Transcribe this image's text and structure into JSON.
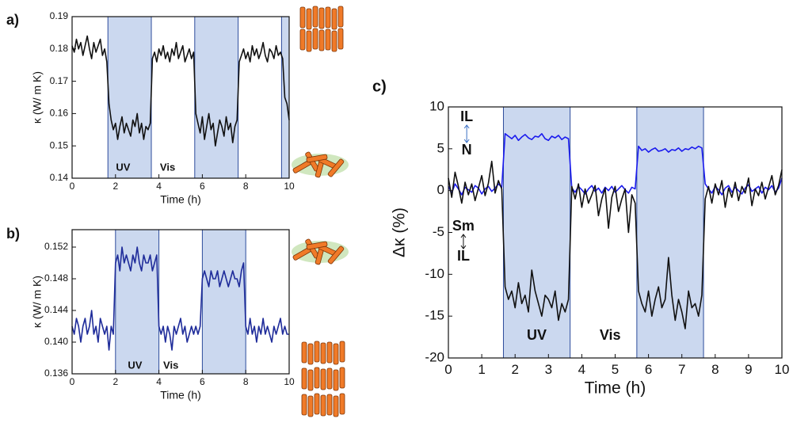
{
  "chart_data": [
    {
      "type": "line",
      "panel": "a)",
      "xlabel": "Time (h)",
      "ylabel": "κ (W/ m K)",
      "x": [
        0,
        0.1,
        0.2,
        0.3,
        0.4,
        0.5,
        0.6,
        0.7,
        0.8,
        0.9,
        1,
        1.1,
        1.2,
        1.3,
        1.4,
        1.5,
        1.6,
        1.7,
        1.8,
        1.9,
        2,
        2.1,
        2.2,
        2.3,
        2.4,
        2.5,
        2.6,
        2.7,
        2.8,
        2.9,
        3,
        3.1,
        3.2,
        3.3,
        3.4,
        3.5,
        3.6,
        3.7,
        3.8,
        3.9,
        4,
        4.1,
        4.2,
        4.3,
        4.4,
        4.5,
        4.6,
        4.7,
        4.8,
        4.9,
        5,
        5.1,
        5.2,
        5.3,
        5.4,
        5.5,
        5.6,
        5.7,
        5.8,
        5.9,
        6,
        6.1,
        6.2,
        6.3,
        6.4,
        6.5,
        6.6,
        6.7,
        6.8,
        6.9,
        7,
        7.1,
        7.2,
        7.3,
        7.4,
        7.5,
        7.6,
        7.7,
        7.8,
        7.9,
        8,
        8.1,
        8.2,
        8.3,
        8.4,
        8.5,
        8.6,
        8.7,
        8.8,
        8.9,
        9,
        9.1,
        9.2,
        9.3,
        9.4,
        9.5,
        9.6,
        9.7,
        9.8,
        9.9,
        10
      ],
      "series": [
        {
          "color": "#111111",
          "values": [
            0.181,
            0.179,
            0.183,
            0.18,
            0.182,
            0.178,
            0.181,
            0.184,
            0.18,
            0.177,
            0.182,
            0.179,
            0.181,
            0.183,
            0.178,
            0.18,
            0.176,
            0.163,
            0.158,
            0.155,
            0.157,
            0.152,
            0.156,
            0.159,
            0.154,
            0.157,
            0.155,
            0.153,
            0.158,
            0.156,
            0.16,
            0.154,
            0.157,
            0.152,
            0.156,
            0.155,
            0.157,
            0.177,
            0.179,
            0.176,
            0.18,
            0.178,
            0.181,
            0.177,
            0.179,
            0.176,
            0.18,
            0.178,
            0.182,
            0.177,
            0.179,
            0.181,
            0.176,
            0.178,
            0.18,
            0.177,
            0.179,
            0.16,
            0.157,
            0.154,
            0.159,
            0.152,
            0.156,
            0.16,
            0.155,
            0.157,
            0.15,
            0.154,
            0.158,
            0.156,
            0.153,
            0.159,
            0.155,
            0.157,
            0.151,
            0.156,
            0.158,
            0.176,
            0.178,
            0.18,
            0.177,
            0.179,
            0.176,
            0.181,
            0.178,
            0.18,
            0.177,
            0.179,
            0.182,
            0.178,
            0.176,
            0.18,
            0.179,
            0.177,
            0.181,
            0.178,
            0.179,
            0.177,
            0.165,
            0.163,
            0.158
          ]
        }
      ],
      "shaded_regions": [
        [
          1.65,
          3.65
        ],
        [
          5.65,
          7.65
        ],
        [
          9.65,
          10
        ]
      ],
      "xlim": [
        0,
        10
      ],
      "xticks": [
        0,
        2,
        4,
        6,
        8,
        10
      ],
      "ylim": [
        0.14,
        0.19
      ],
      "yticks": [
        0.14,
        0.15,
        0.16,
        0.17,
        0.18,
        0.19
      ],
      "annotations": [
        {
          "text": "UV",
          "color": "#111111"
        },
        {
          "text": "Vis",
          "color": "#111111"
        }
      ]
    },
    {
      "type": "line",
      "panel": "b)",
      "xlabel": "Time (h)",
      "ylabel": "κ (W/ m K)",
      "x": [
        0,
        0.1,
        0.2,
        0.3,
        0.4,
        0.5,
        0.6,
        0.7,
        0.8,
        0.9,
        1,
        1.1,
        1.2,
        1.3,
        1.4,
        1.5,
        1.6,
        1.7,
        1.8,
        1.9,
        2,
        2.1,
        2.2,
        2.3,
        2.4,
        2.5,
        2.6,
        2.7,
        2.8,
        2.9,
        3,
        3.1,
        3.2,
        3.3,
        3.4,
        3.5,
        3.6,
        3.7,
        3.8,
        3.9,
        4,
        4.1,
        4.2,
        4.3,
        4.4,
        4.5,
        4.6,
        4.7,
        4.8,
        4.9,
        5,
        5.1,
        5.2,
        5.3,
        5.4,
        5.5,
        5.6,
        5.7,
        5.8,
        5.9,
        6,
        6.1,
        6.2,
        6.3,
        6.4,
        6.5,
        6.6,
        6.7,
        6.8,
        6.9,
        7,
        7.1,
        7.2,
        7.3,
        7.4,
        7.5,
        7.6,
        7.7,
        7.8,
        7.9,
        8,
        8.1,
        8.2,
        8.3,
        8.4,
        8.5,
        8.6,
        8.7,
        8.8,
        8.9,
        9,
        9.1,
        9.2,
        9.3,
        9.4,
        9.5,
        9.6,
        9.7,
        9.8,
        9.9,
        10
      ],
      "series": [
        {
          "color": "#1f2c9a",
          "values": [
            0.142,
            0.141,
            0.143,
            0.142,
            0.14,
            0.142,
            0.143,
            0.141,
            0.142,
            0.144,
            0.141,
            0.142,
            0.14,
            0.143,
            0.142,
            0.141,
            0.142,
            0.139,
            0.142,
            0.141,
            0.15,
            0.151,
            0.149,
            0.152,
            0.15,
            0.151,
            0.15,
            0.149,
            0.151,
            0.15,
            0.152,
            0.15,
            0.149,
            0.151,
            0.15,
            0.15,
            0.151,
            0.149,
            0.15,
            0.151,
            0.142,
            0.141,
            0.142,
            0.14,
            0.142,
            0.141,
            0.139,
            0.142,
            0.141,
            0.142,
            0.143,
            0.141,
            0.142,
            0.14,
            0.141,
            0.142,
            0.141,
            0.142,
            0.141,
            0.142,
            0.148,
            0.149,
            0.148,
            0.147,
            0.149,
            0.148,
            0.148,
            0.149,
            0.147,
            0.148,
            0.149,
            0.148,
            0.147,
            0.148,
            0.149,
            0.148,
            0.148,
            0.147,
            0.149,
            0.15,
            0.142,
            0.141,
            0.143,
            0.141,
            0.142,
            0.14,
            0.142,
            0.141,
            0.143,
            0.141,
            0.142,
            0.141,
            0.14,
            0.142,
            0.141,
            0.142,
            0.143,
            0.141,
            0.142,
            0.141,
            0.141
          ]
        }
      ],
      "shaded_regions": [
        [
          2,
          4
        ],
        [
          6,
          8
        ]
      ],
      "xlim": [
        0,
        10
      ],
      "xticks": [
        0,
        2,
        4,
        6,
        8,
        10
      ],
      "ylim": [
        0.136,
        0.1542
      ],
      "yticks": [
        0.136,
        {
          "value": 0.14,
          "label": "0.140"
        },
        0.144,
        0.148,
        0.152
      ],
      "annotations": [
        {
          "text": "UV",
          "color": "#111111"
        },
        {
          "text": "Vis",
          "color": "#111111"
        }
      ]
    },
    {
      "type": "line",
      "panel": "c)",
      "xlabel": "Time (h)",
      "ylabel": "Δκ (%)",
      "x": [
        0,
        0.1,
        0.2,
        0.3,
        0.4,
        0.5,
        0.6,
        0.7,
        0.8,
        0.9,
        1,
        1.1,
        1.2,
        1.3,
        1.4,
        1.5,
        1.6,
        1.7,
        1.8,
        1.9,
        2,
        2.1,
        2.2,
        2.3,
        2.4,
        2.5,
        2.6,
        2.7,
        2.8,
        2.9,
        3,
        3.1,
        3.2,
        3.3,
        3.4,
        3.5,
        3.6,
        3.7,
        3.8,
        3.9,
        4,
        4.1,
        4.2,
        4.3,
        4.4,
        4.5,
        4.6,
        4.7,
        4.8,
        4.9,
        5,
        5.1,
        5.2,
        5.3,
        5.4,
        5.5,
        5.6,
        5.7,
        5.8,
        5.9,
        6,
        6.1,
        6.2,
        6.3,
        6.4,
        6.5,
        6.6,
        6.7,
        6.8,
        6.9,
        7,
        7.1,
        7.2,
        7.3,
        7.4,
        7.5,
        7.6,
        7.7,
        7.8,
        7.9,
        8,
        8.1,
        8.2,
        8.3,
        8.4,
        8.5,
        8.6,
        8.7,
        8.8,
        8.9,
        9,
        9.1,
        9.2,
        9.3,
        9.4,
        9.5,
        9.6,
        9.7,
        9.8,
        9.9,
        10
      ],
      "series": [
        {
          "color": "#1a1aee",
          "values": [
            0.5,
            -0.3,
            0.8,
            0.2,
            -0.5,
            0.4,
            0.1,
            -0.2,
            0.6,
            0.3,
            -0.4,
            0.2,
            0.5,
            -0.1,
            0.3,
            0.8,
            0.4,
            6.8,
            6.5,
            6.2,
            6.6,
            6.0,
            6.4,
            6.7,
            6.3,
            6.1,
            6.5,
            6.4,
            6.8,
            6.2,
            6.0,
            6.5,
            6.3,
            6.6,
            6.1,
            6.4,
            6.2,
            0.3,
            -0.2,
            0.5,
            0.1,
            -0.4,
            0.2,
            0.6,
            -0.1,
            0.3,
            -0.3,
            0.4,
            0.0,
            0.5,
            -0.2,
            0.2,
            0.6,
            0.1,
            -0.3,
            0.4,
            0.2,
            5.3,
            4.8,
            5.0,
            4.6,
            4.9,
            5.1,
            4.7,
            4.8,
            5.0,
            4.6,
            4.9,
            4.8,
            5.1,
            4.7,
            5.0,
            4.9,
            5.2,
            5.0,
            5.3,
            5.1,
            0.8,
            0.2,
            -0.3,
            0.5,
            0.1,
            -0.5,
            0.3,
            0.6,
            -0.2,
            0.4,
            0.0,
            -0.4,
            0.3,
            0.7,
            -0.1,
            0.2,
            0.5,
            -0.3,
            0.4,
            0.1,
            0.6,
            -0.2,
            0.3,
            1.5
          ]
        },
        {
          "color": "#111111",
          "values": [
            1.5,
            -0.8,
            2.2,
            0.5,
            -1.5,
            1.0,
            -0.5,
            0.8,
            -1.2,
            0.3,
            1.8,
            -0.6,
            0.9,
            3.5,
            -0.3,
            1.2,
            0.2,
            -11.5,
            -13.0,
            -12.0,
            -14.0,
            -11.0,
            -13.5,
            -12.5,
            -14.5,
            -9.5,
            -12.0,
            -13.5,
            -15.0,
            -12.5,
            -13.0,
            -14.0,
            -12.0,
            -15.5,
            -13.5,
            -14.5,
            -13.0,
            0.5,
            -1.0,
            0.8,
            -2.0,
            0.2,
            -1.5,
            -0.5,
            0.6,
            -3.0,
            -1.0,
            0.3,
            -4.5,
            -0.8,
            0.5,
            -2.5,
            -1.0,
            0.2,
            -5.0,
            -0.5,
            -1.5,
            -12.0,
            -13.5,
            -14.5,
            -12.0,
            -15.0,
            -13.0,
            -11.5,
            -14.0,
            -13.0,
            -8.0,
            -12.5,
            -15.5,
            -13.0,
            -14.5,
            -16.5,
            -12.0,
            -14.0,
            -13.5,
            -15.0,
            -12.5,
            -1.0,
            0.5,
            -1.5,
            0.8,
            -0.5,
            1.2,
            -2.0,
            0.3,
            -0.8,
            1.0,
            -1.2,
            0.5,
            -0.3,
            1.5,
            -1.8,
            0.2,
            -0.6,
            1.0,
            -1.0,
            0.4,
            1.8,
            -0.5,
            0.6,
            2.5
          ]
        }
      ],
      "shaded_regions": [
        [
          1.65,
          3.65
        ],
        [
          5.65,
          7.65
        ]
      ],
      "xlim": [
        0,
        10
      ],
      "xticks": [
        0,
        1,
        2,
        3,
        4,
        5,
        6,
        7,
        8,
        9,
        10
      ],
      "ylim": [
        -20,
        10
      ],
      "yticks": [
        -20,
        -15,
        -10,
        -5,
        0,
        5,
        10
      ],
      "annotations": [
        {
          "text": "IL",
          "color": "#3a6fc4"
        },
        {
          "text": "N",
          "color": "#3a6fc4"
        },
        {
          "text": "Sm",
          "color": "#111111"
        },
        {
          "text": "IL",
          "color": "#111111"
        },
        {
          "text": "UV",
          "color": "#111111"
        },
        {
          "text": "Vis",
          "color": "#111111"
        }
      ]
    }
  ]
}
